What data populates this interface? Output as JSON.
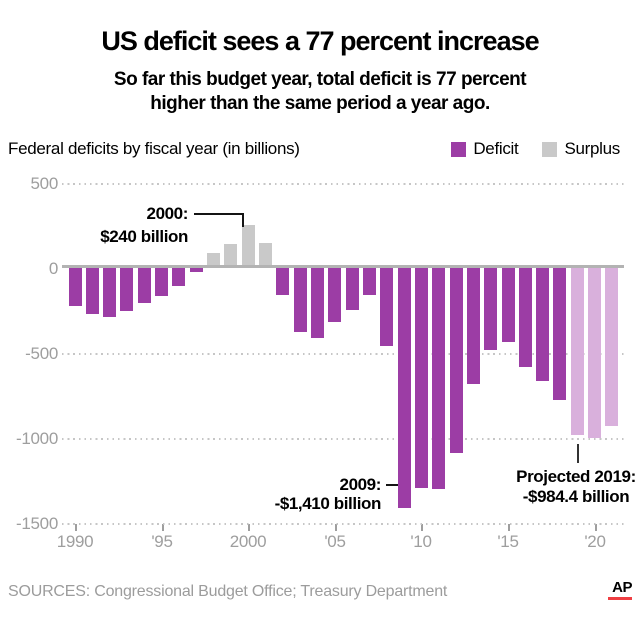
{
  "header": {
    "title": "US deficit sees a 77 percent increase",
    "subtitle_lines": [
      "So far this budget year, total deficit is 77 percent",
      "higher than the same period a year ago."
    ]
  },
  "chart_data": {
    "type": "bar",
    "title": "Federal deficits by fiscal year (in billions)",
    "xlabel": "",
    "ylabel": "",
    "unit": "billions of US dollars",
    "ylim": [
      -1500,
      500
    ],
    "grid": "horizontal dotted",
    "legend_position": "top-right",
    "legend": [
      {
        "label": "Deficit",
        "color": "#9c3da5"
      },
      {
        "label": "Surplus",
        "color": "#c9c9c9"
      }
    ],
    "colors": {
      "deficit": "#9c3da5",
      "surplus": "#c9c9c9",
      "projected": "#d9b0dc",
      "axis_text": "#9e9e9e",
      "zero_line": "#b3b3b3"
    },
    "y_ticks": [
      {
        "label": "500",
        "value": 500
      },
      {
        "label": "0",
        "value": 0
      },
      {
        "label": "-500",
        "value": -500
      },
      {
        "label": "-1000",
        "value": -1000
      },
      {
        "label": "-1500",
        "value": -1500
      }
    ],
    "x_ticks": [
      {
        "label": "1990",
        "year": 1990
      },
      {
        "label": "'95",
        "year": 1995
      },
      {
        "label": "2000",
        "year": 2000
      },
      {
        "label": "'05",
        "year": 2005
      },
      {
        "label": "'10",
        "year": 2010
      },
      {
        "label": "'15",
        "year": 2015
      },
      {
        "label": "'20",
        "year": 2020
      }
    ],
    "points": [
      {
        "year": 1990,
        "value": -221
      },
      {
        "year": 1991,
        "value": -269
      },
      {
        "year": 1992,
        "value": -290
      },
      {
        "year": 1993,
        "value": -255
      },
      {
        "year": 1994,
        "value": -203
      },
      {
        "year": 1995,
        "value": -164
      },
      {
        "year": 1996,
        "value": -107
      },
      {
        "year": 1997,
        "value": -22
      },
      {
        "year": 1998,
        "value": 69
      },
      {
        "year": 1999,
        "value": 126
      },
      {
        "year": 2000,
        "value": 236
      },
      {
        "year": 2001,
        "value": 128
      },
      {
        "year": 2002,
        "value": -158
      },
      {
        "year": 2003,
        "value": -378
      },
      {
        "year": 2004,
        "value": -413
      },
      {
        "year": 2005,
        "value": -318
      },
      {
        "year": 2006,
        "value": -248
      },
      {
        "year": 2007,
        "value": -161
      },
      {
        "year": 2008,
        "value": -459
      },
      {
        "year": 2009,
        "value": -1413
      },
      {
        "year": 2010,
        "value": -1294
      },
      {
        "year": 2011,
        "value": -1300
      },
      {
        "year": 2012,
        "value": -1087
      },
      {
        "year": 2013,
        "value": -680
      },
      {
        "year": 2014,
        "value": -485
      },
      {
        "year": 2015,
        "value": -438
      },
      {
        "year": 2016,
        "value": -585
      },
      {
        "year": 2017,
        "value": -665
      },
      {
        "year": 2018,
        "value": -779
      },
      {
        "year": 2019,
        "value": -984.4,
        "projected": true
      },
      {
        "year": 2020,
        "value": -1000,
        "projected": true
      },
      {
        "year": 2021,
        "value": -930,
        "projected": true
      }
    ],
    "annotations": [
      {
        "lines": [
          "2000:",
          "$240 billion"
        ],
        "target_year": 2000
      },
      {
        "lines": [
          "2009:",
          "-$1,410 billion"
        ],
        "target_year": 2009
      },
      {
        "lines": [
          "Projected 2019:",
          "-$984.4 billion"
        ],
        "target_year": 2019
      }
    ]
  },
  "footer": {
    "sources": "SOURCES: Congressional Budget Office; Treasury Department",
    "credit": "AP",
    "credit_accent_color": "#ef3e42"
  }
}
